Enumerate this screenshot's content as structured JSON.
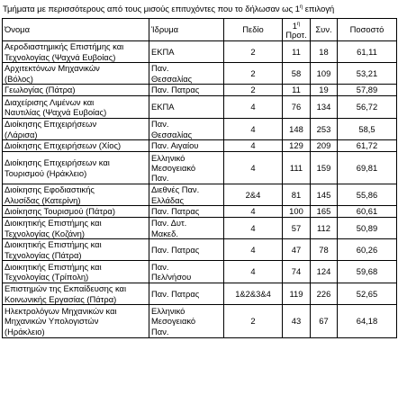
{
  "caption": {
    "text": "Τμήματα με περισσότερους από τους μισούς επιτυχόντες που το δήλωσαν ως 1",
    "sup": "η",
    "suffix": " επιλογή"
  },
  "columns": {
    "name": "Όνομα",
    "institution": "Ίδρυμα",
    "field": "Πεδίο",
    "first_line1": "1",
    "first_sup": "η",
    "first_line2": "Προτ.",
    "total": "Συν.",
    "percent": "Ποσοστό"
  },
  "rows": [
    {
      "name": [
        "Αεροδιαστημικής Επιστήμης και",
        "Τεχνολογίας  (Ψαχνά Ευβοίας)"
      ],
      "institution": [
        "ΕΚΠΑ"
      ],
      "field": "2",
      "first": "11",
      "total": "18",
      "percent": "61,11"
    },
    {
      "name": [
        "Αρχιτεκτόνων Μηχανικών",
        "(Βόλος)"
      ],
      "institution": [
        "Παν.",
        "Θεσσαλίας"
      ],
      "field": "2",
      "first": "58",
      "total": "109",
      "percent": "53,21"
    },
    {
      "name": [
        "Γεωλογίας (Πάτρα)"
      ],
      "institution": [
        "Παν. Πατρας"
      ],
      "field": "2",
      "first": "11",
      "total": "19",
      "percent": "57,89"
    },
    {
      "name": [
        "Διαχείρισης Λιμένων και",
        "Ναυτιλίας (Ψαχνά Ευβοίας)"
      ],
      "institution": [
        "ΕΚΠΑ"
      ],
      "field": "4",
      "first": "76",
      "total": "134",
      "percent": "56,72"
    },
    {
      "name": [
        "Διοίκησης Επιχειρήσεων",
        "(Λάρισα)"
      ],
      "institution": [
        "Παν.",
        "Θεσσαλίας"
      ],
      "field": "4",
      "first": "148",
      "total": "253",
      "percent": "58,5"
    },
    {
      "name": [
        "Διοίκησης Επιχειρήσεων (Χίος)"
      ],
      "institution": [
        "Παν. Αιγαίου"
      ],
      "field": "4",
      "first": "129",
      "total": "209",
      "percent": "61,72"
    },
    {
      "name": [
        "Διοίκησης Επιχειρήσεων και",
        "Τουρισμού (Ηράκλειο)"
      ],
      "institution": [
        "Ελληνικό",
        "Μεσογειακό",
        "Παν."
      ],
      "field": "4",
      "first": "111",
      "total": "159",
      "percent": "69,81"
    },
    {
      "name": [
        "Διοίκησης Εφοδιαστικής",
        "Αλυσίδας (Κατερίνη)"
      ],
      "institution": [
        "Διεθνές Παν.",
        "Ελλάδας"
      ],
      "field": "2&4",
      "first": "81",
      "total": "145",
      "percent": "55,86"
    },
    {
      "name": [
        "Διοίκησης Τουρισμού (Πάτρα)"
      ],
      "institution": [
        "Παν. Πατρας"
      ],
      "field": "4",
      "first": "100",
      "total": "165",
      "percent": "60,61"
    },
    {
      "name": [
        "Διοικητικής Επιστήμης και",
        "Τεχνολογίας (Κοζάνη)"
      ],
      "institution": [
        "Παν. Δυτ.",
        "Μακεδ."
      ],
      "field": "4",
      "first": "57",
      "total": "112",
      "percent": "50,89"
    },
    {
      "name": [
        "Διοικητικής Επιστήμης και",
        "Τεχνολογίας (Πάτρα)"
      ],
      "institution": [
        "Παν. Πατρας"
      ],
      "field": "4",
      "first": "47",
      "total": "78",
      "percent": "60,26"
    },
    {
      "name": [
        "Διοικητικής Επιστήμης και",
        "Τεχνολογίας (Τρίπολη)"
      ],
      "institution": [
        "Παν.",
        "Πελ/νήσου"
      ],
      "field": "4",
      "first": "74",
      "total": "124",
      "percent": "59,68"
    },
    {
      "name": [
        "Επιστημών της Εκπαίδευσης και",
        "Κοινωνικής  Εργασίας (Πάτρα)"
      ],
      "institution": [
        "Παν. Πατρας"
      ],
      "field": "1&2&3&4",
      "first": "119",
      "total": "226",
      "percent": "52,65"
    },
    {
      "name": [
        "Ηλεκτρολόγων Μηχανικών και",
        "Μηχανικών Υπολογιστών",
        "(Ηράκλειο)"
      ],
      "institution": [
        "Ελληνικό",
        "Μεσογειακό",
        "Παν."
      ],
      "field": "2",
      "first": "43",
      "total": "67",
      "percent": "64,18"
    }
  ]
}
